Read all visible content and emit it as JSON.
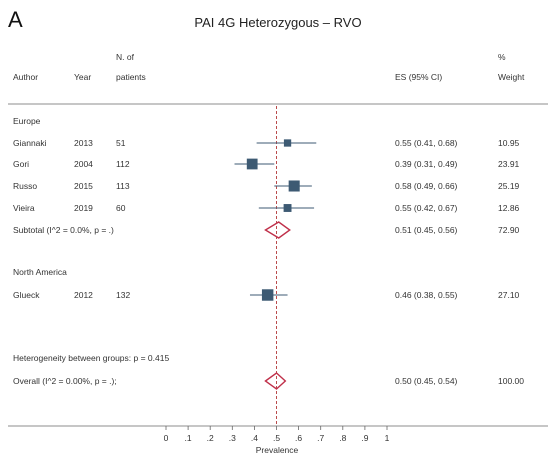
{
  "panel_letter": "A",
  "chart_data": {
    "type": "forest",
    "title": "PAI 4G Heterozygous – RVO",
    "headers": {
      "author": "Author",
      "year": "Year",
      "n_top": "N. of",
      "n_bottom": "patients",
      "es": "ES (95% CI)",
      "weight_top": "%",
      "weight_bottom": "Weight"
    },
    "groups": [
      {
        "name": "Europe",
        "studies": [
          {
            "author": "Giannaki",
            "year": "2013",
            "n": "51",
            "es": 0.55,
            "lo": 0.41,
            "hi": 0.68,
            "es_text": "0.55 (0.41, 0.68)",
            "weight": 10.95,
            "weight_text": "10.95"
          },
          {
            "author": "Gori",
            "year": "2004",
            "n": "112",
            "es": 0.39,
            "lo": 0.31,
            "hi": 0.49,
            "es_text": "0.39 (0.31, 0.49)",
            "weight": 23.91,
            "weight_text": "23.91"
          },
          {
            "author": "Russo",
            "year": "2015",
            "n": "113",
            "es": 0.58,
            "lo": 0.49,
            "hi": 0.66,
            "es_text": "0.58 (0.49, 0.66)",
            "weight": 25.19,
            "weight_text": "25.19"
          },
          {
            "author": "Vieira",
            "year": "2019",
            "n": "60",
            "es": 0.55,
            "lo": 0.42,
            "hi": 0.67,
            "es_text": "0.55 (0.42, 0.67)",
            "weight": 12.86,
            "weight_text": "12.86"
          }
        ],
        "subtotal": {
          "label": "Subtotal  (I^2 = 0.0%, p = .)",
          "es": 0.51,
          "lo": 0.45,
          "hi": 0.56,
          "es_text": "0.51 (0.45, 0.56)",
          "weight_text": "72.90"
        }
      },
      {
        "name": "North America",
        "studies": [
          {
            "author": "Glueck",
            "year": "2012",
            "n": "132",
            "es": 0.46,
            "lo": 0.38,
            "hi": 0.55,
            "es_text": "0.46 (0.38, 0.55)",
            "weight": 27.1,
            "weight_text": "27.10"
          }
        ]
      }
    ],
    "heterogeneity_text": "Heterogeneity between groups: p = 0.415",
    "overall": {
      "label": "Overall  (I^2 = 0.00%, p = .);",
      "es": 0.5,
      "lo": 0.45,
      "hi": 0.54,
      "es_text": "0.50 (0.45, 0.54)",
      "weight_text": "100.00"
    },
    "x_axis": {
      "label": "Prevalence",
      "range": [
        0,
        1
      ],
      "ticks": [
        0,
        0.1,
        0.2,
        0.3,
        0.4,
        0.5,
        0.6,
        0.7,
        0.8,
        0.9,
        1
      ],
      "tick_labels": [
        "0",
        ".1",
        ".2",
        ".3",
        ".4",
        ".5",
        ".6",
        ".7",
        ".8",
        ".9",
        "1"
      ]
    },
    "colors": {
      "box": "#3d5a73",
      "ci_line": "#3d5a73",
      "diamond": "#c0304a",
      "ref_line": "#b33a3a",
      "text": "#333333"
    }
  }
}
